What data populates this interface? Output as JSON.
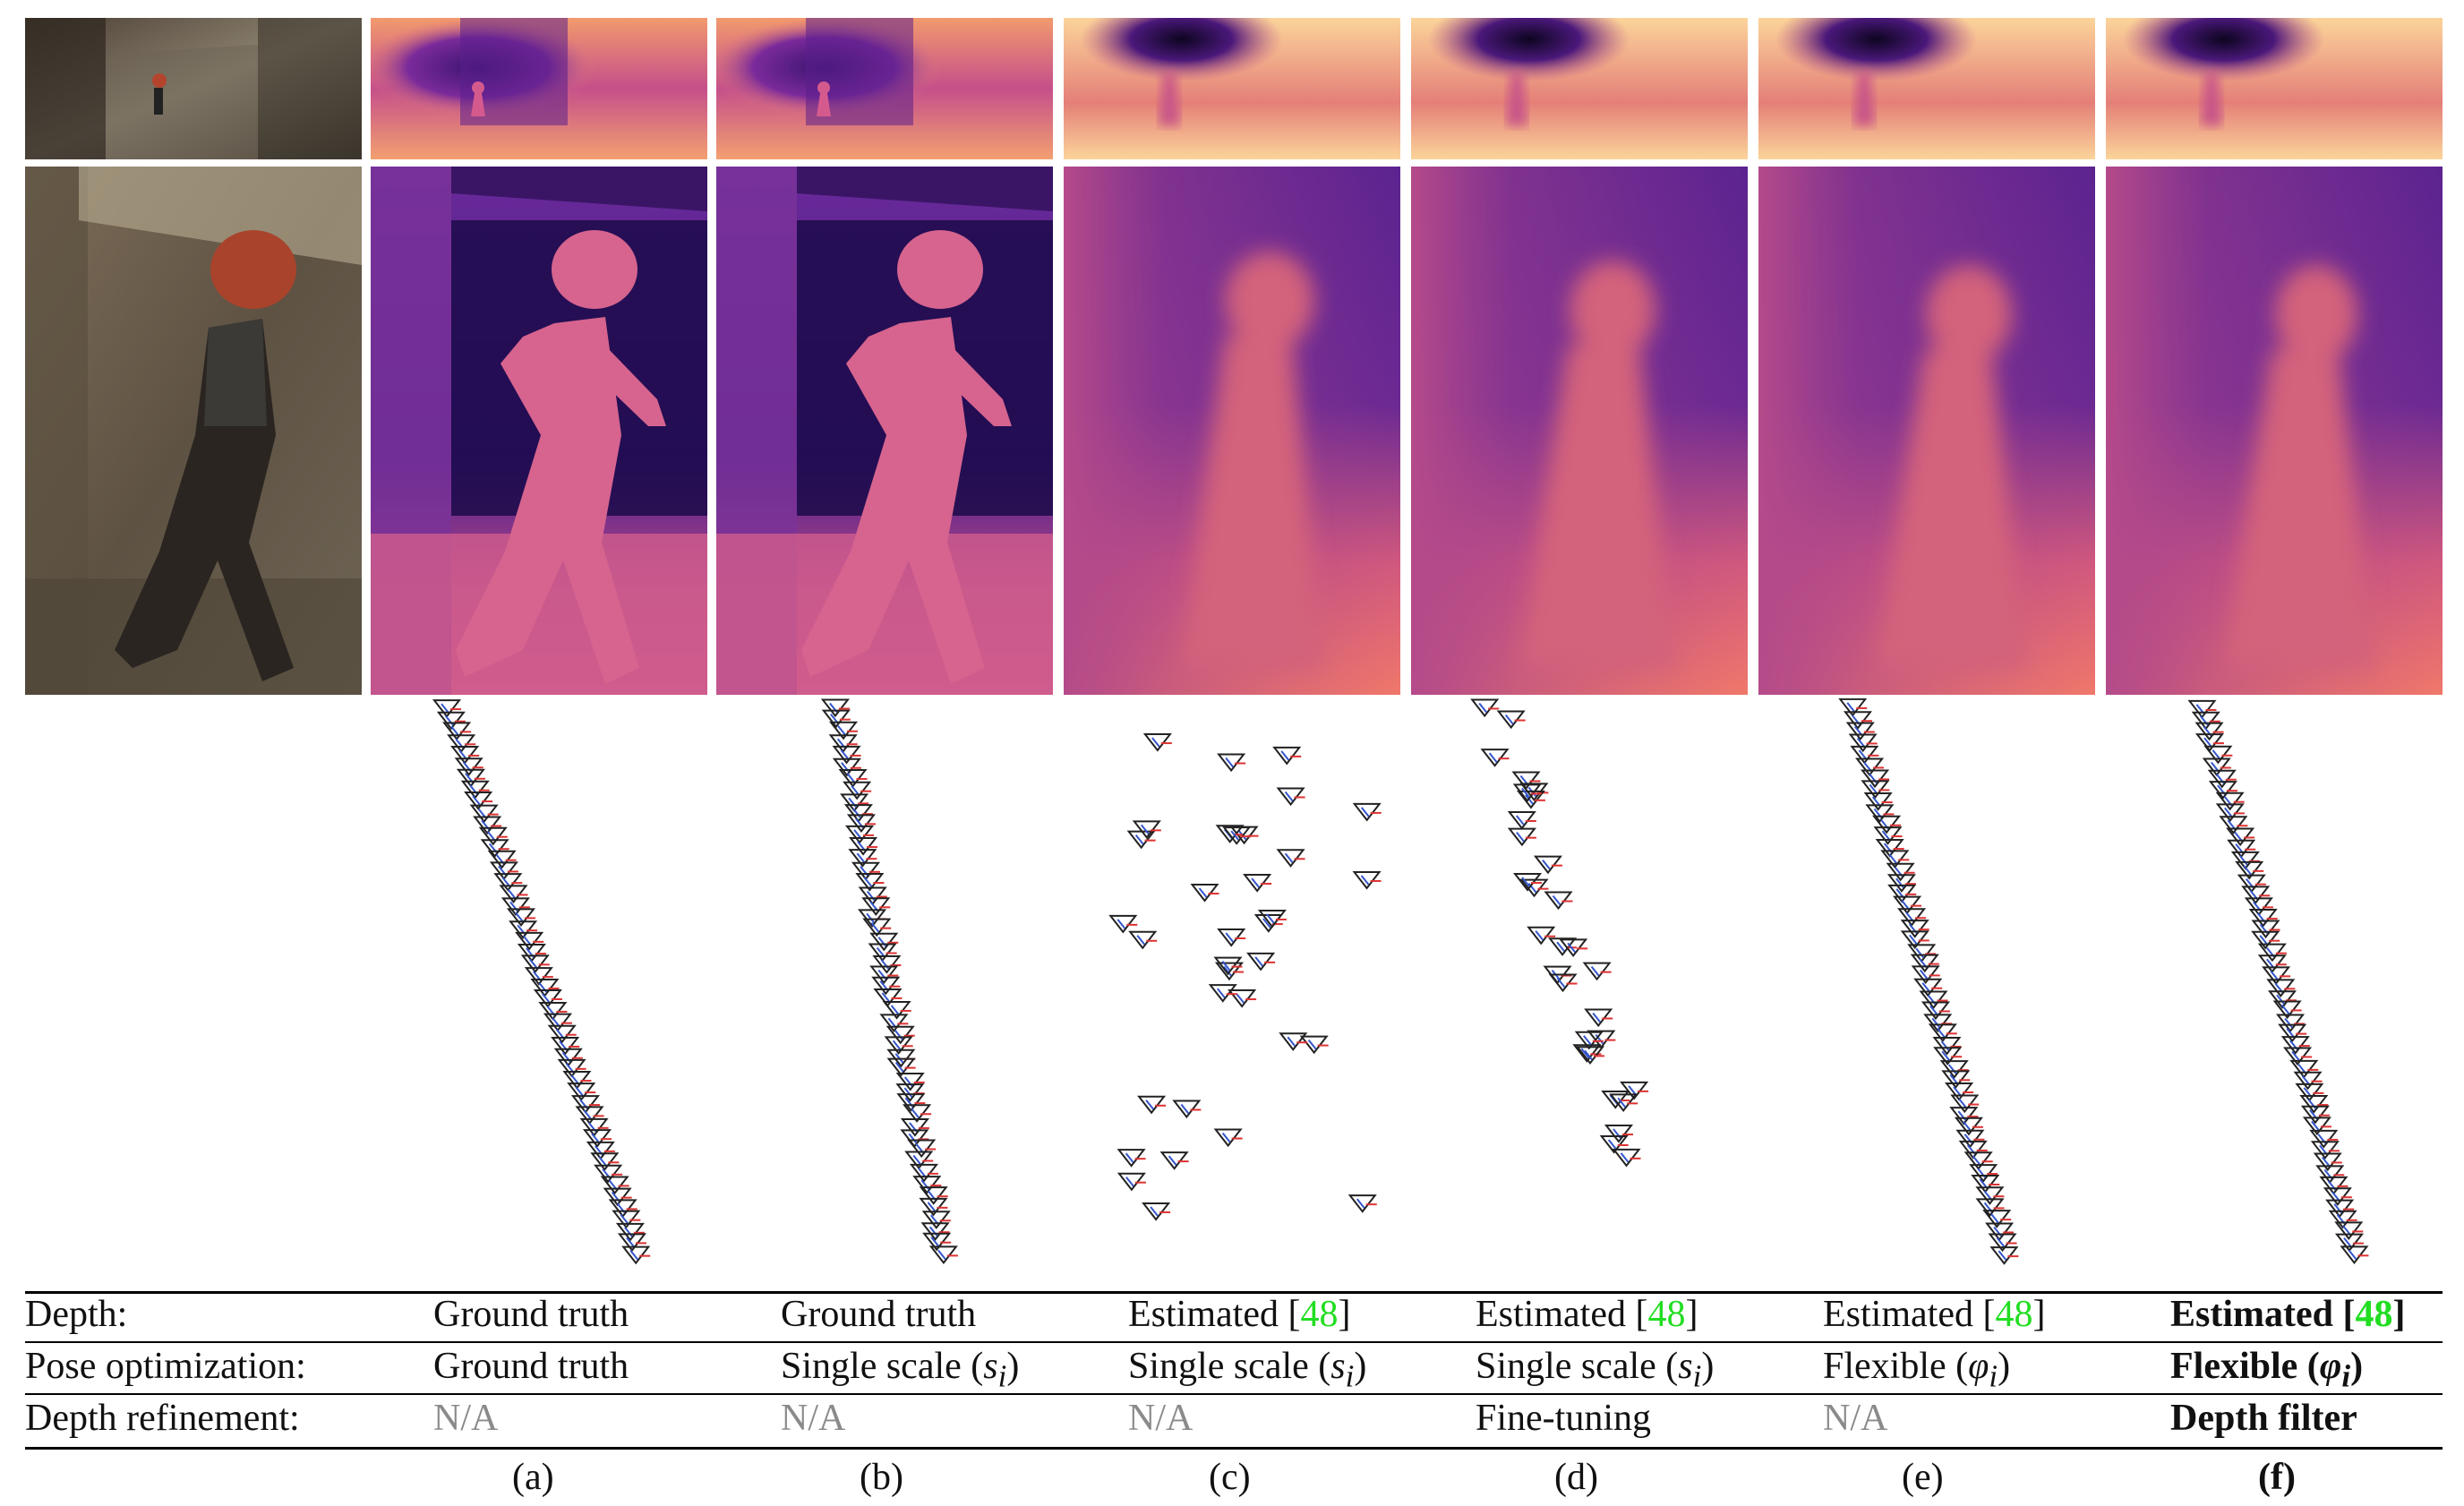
{
  "figure": {
    "columns": [
      "a",
      "b",
      "c",
      "d",
      "e",
      "f"
    ],
    "captions": [
      "(a)",
      "(b)",
      "(c)",
      "(d)",
      "(e)",
      "(f)"
    ],
    "citation": "48",
    "table": {
      "row_labels": [
        "Depth:",
        "Pose optimization:",
        "Depth refinement:"
      ],
      "rows": [
        {
          "a": "Ground truth",
          "b": "Ground truth",
          "c": "Estimated [",
          "d": "Estimated [",
          "e": "Estimated [",
          "f": "Estimated ["
        },
        {
          "a": "Ground truth",
          "b": "Single scale (",
          "c": "Single scale (",
          "d": "Single scale (",
          "e": "Flexible (",
          "f": "Flexible ("
        },
        {
          "a": "N/A",
          "b": "N/A",
          "c": "N/A",
          "d": "Fine-tuning",
          "e": "N/A",
          "f": "Depth filter"
        }
      ],
      "close_bracket": "]",
      "scale_symbol": "s",
      "scale_subscript": "i",
      "flex_symbol": "φ",
      "flex_subscript": "i",
      "close_paren": ")"
    },
    "colors": {
      "magma_dark": "#1a0b3d",
      "magma_purple": "#5a1a8a",
      "magma_pink": "#d8547a",
      "magma_orange": "#f7a66a",
      "magma_light": "#fde6b0",
      "highlight_green": "#22dd22",
      "na_gray": "#8a8a8a"
    }
  }
}
